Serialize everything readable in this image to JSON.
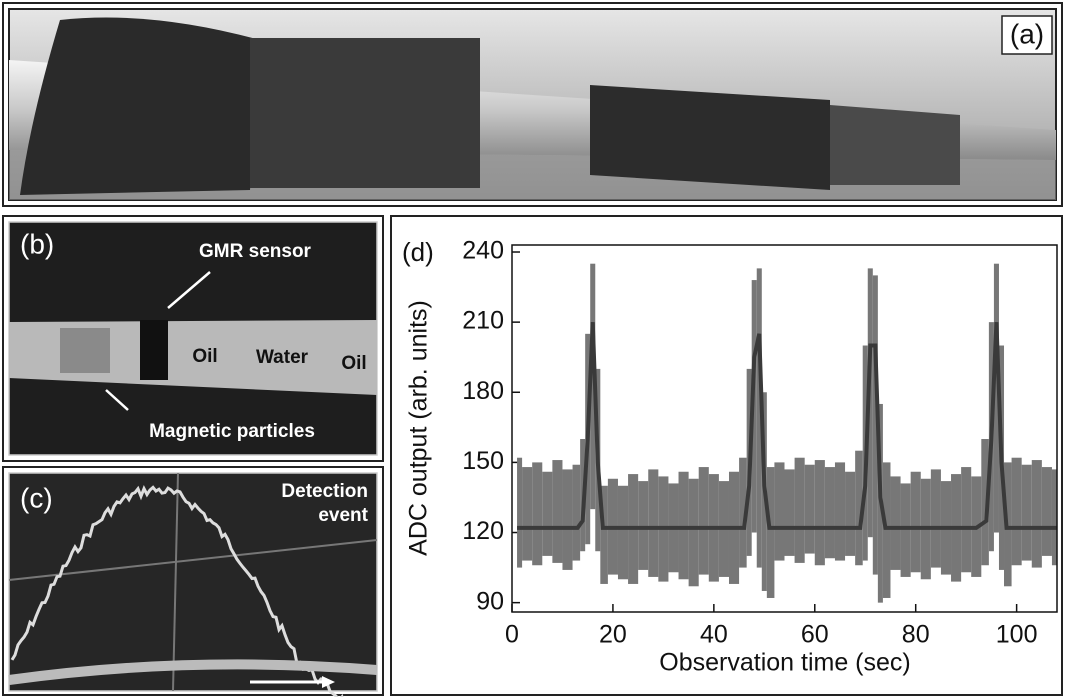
{
  "panels": {
    "a": {
      "label": "(a)"
    },
    "b": {
      "label": "(b)",
      "annotations": [
        "GMR sensor",
        "Oil",
        "Water",
        "Oil",
        "Magnetic particles"
      ]
    },
    "c": {
      "label": "(c)",
      "annotation": [
        "Detection",
        "event"
      ]
    }
  },
  "chart_data": {
    "type": "line",
    "label": "(d)",
    "x_label": "Observation time (sec)",
    "y_label": "ADC output (arb. units)",
    "xlim": [
      0,
      108
    ],
    "xticks": [
      0,
      20,
      40,
      60,
      80,
      100
    ],
    "ylim": [
      86,
      243
    ],
    "yticks": [
      90,
      120,
      150,
      180,
      210,
      240
    ],
    "x": [
      1,
      3,
      5,
      7,
      9,
      11,
      13,
      14,
      15,
      16,
      17,
      18,
      20,
      22,
      24,
      26,
      28,
      30,
      32,
      34,
      36,
      38,
      40,
      42,
      44,
      46,
      47,
      48,
      49,
      50,
      51,
      53,
      55,
      57,
      59,
      61,
      63,
      65,
      67,
      69,
      70,
      71,
      72,
      73,
      74,
      76,
      78,
      80,
      82,
      84,
      86,
      88,
      90,
      92,
      94,
      95,
      96,
      97,
      98,
      100,
      102,
      104,
      106,
      108
    ],
    "series": [
      {
        "color": "#3a3a3a",
        "values": [
          122,
          122,
          122,
          122,
          122,
          122,
          122,
          125,
          160,
          210,
          150,
          122,
          122,
          122,
          122,
          122,
          122,
          122,
          122,
          122,
          122,
          122,
          122,
          122,
          122,
          122,
          140,
          195,
          205,
          140,
          122,
          122,
          122,
          122,
          122,
          122,
          122,
          122,
          122,
          122,
          140,
          200,
          200,
          135,
          122,
          122,
          122,
          122,
          122,
          122,
          122,
          122,
          122,
          122,
          125,
          160,
          210,
          150,
          122,
          122,
          122,
          122,
          122,
          122
        ]
      },
      {
        "color": "#777777",
        "values": [
          152,
          148,
          150,
          146,
          151,
          147,
          149,
          160,
          205,
          235,
          190,
          140,
          143,
          140,
          145,
          142,
          147,
          144,
          141,
          146,
          143,
          148,
          145,
          142,
          146,
          152,
          190,
          228,
          233,
          180,
          148,
          150,
          147,
          152,
          149,
          151,
          148,
          150,
          146,
          155,
          200,
          233,
          230,
          175,
          150,
          144,
          141,
          146,
          143,
          147,
          142,
          145,
          148,
          144,
          160,
          210,
          235,
          200,
          150,
          152,
          149,
          151,
          148,
          147
        ]
      },
      {
        "color": "#777777",
        "values": [
          105,
          108,
          106,
          110,
          107,
          104,
          108,
          112,
          115,
          130,
          112,
          98,
          102,
          100,
          98,
          104,
          101,
          99,
          103,
          100,
          97,
          102,
          99,
          101,
          98,
          105,
          110,
          120,
          105,
          95,
          92,
          108,
          110,
          107,
          111,
          106,
          109,
          108,
          110,
          106,
          108,
          118,
          102,
          90,
          92,
          104,
          101,
          103,
          100,
          105,
          102,
          99,
          103,
          101,
          106,
          112,
          120,
          104,
          97,
          106,
          108,
          105,
          110,
          106
        ]
      }
    ]
  }
}
